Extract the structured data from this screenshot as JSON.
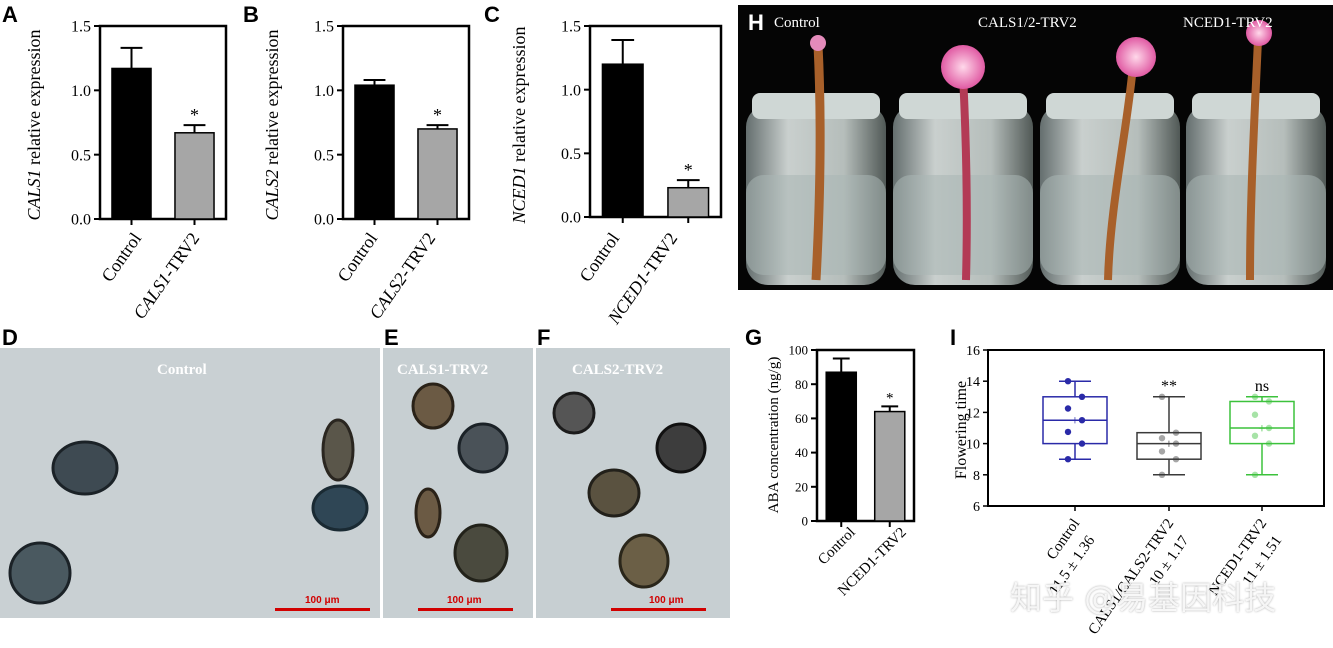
{
  "panels": {
    "A": {
      "letter": "A",
      "ylabel_italic": "CALS1",
      "ylabel_rest": " relative expression",
      "yticks": [
        "0.0",
        "0.5",
        "1.0",
        "1.5"
      ],
      "categories": [
        "Control",
        "CALS1-TRV2"
      ],
      "cat2_italic": "CALS1",
      "cat2_rest": "-TRV2",
      "star": "*"
    },
    "B": {
      "letter": "B",
      "ylabel_italic": "CALS2",
      "ylabel_rest": " relative expression",
      "yticks": [
        "0.0",
        "0.5",
        "1.0",
        "1.5"
      ],
      "categories": [
        "Control",
        "CALS2-TRV2"
      ],
      "cat2_italic": "CALS2",
      "cat2_rest": "-TRV2",
      "star": "*"
    },
    "C": {
      "letter": "C",
      "ylabel_italic": "NCED1",
      "ylabel_rest": " relative expression",
      "yticks": [
        "0.0",
        "0.5",
        "1.0",
        "1.5"
      ],
      "categories": [
        "Control",
        "NCED1-TRV2"
      ],
      "cat2_italic": "NCED1",
      "cat2_rest": "-TRV2",
      "star": "*"
    },
    "D": {
      "letter": "D",
      "label": "Control",
      "scale": "100 μm"
    },
    "E": {
      "letter": "E",
      "label": "CALS1-TRV2",
      "scale": "100 μm"
    },
    "F": {
      "letter": "F",
      "label": "CALS2-TRV2",
      "scale": "100 μm"
    },
    "G": {
      "letter": "G",
      "ylabel": "ABA concentration (ng/g)",
      "yticks": [
        "0",
        "20",
        "40",
        "60",
        "80",
        "100"
      ],
      "categories": [
        "Control",
        "NCED1-TRV2"
      ],
      "star": "*"
    },
    "H": {
      "letter": "H",
      "labels": [
        "Control",
        "CALS1/2-TRV2",
        "NCED1-TRV2"
      ]
    },
    "I": {
      "letter": "I",
      "ylabel": "Flowering time",
      "yticks": [
        "6",
        "8",
        "10",
        "12",
        "14",
        "16"
      ],
      "xlabels": [
        "Control",
        "CALS1/CALS2-TRV2",
        "NCED1-TRV2"
      ],
      "sublabels": [
        "11.5 ± 1.36",
        "10 ± 1.17",
        "11 ± 1.51"
      ],
      "sig": [
        "",
        "**",
        "ns"
      ]
    }
  },
  "watermark": "知乎 @易基因科技",
  "colors": {
    "control_bar": "#000000",
    "treat_bar": "#a6a6a6",
    "box_control": "#2a2aa8",
    "box_cals": "#3a3a3a",
    "box_nced": "#3cc23c",
    "scale": "#d10000"
  },
  "chart_data": [
    {
      "panel": "A",
      "type": "bar",
      "categories": [
        "Control",
        "CALS1-TRV2"
      ],
      "values": [
        1.17,
        0.67
      ],
      "errors": [
        0.16,
        0.06
      ],
      "ylabel": "CALS1 relative expression",
      "ylim": [
        0,
        1.5
      ]
    },
    {
      "panel": "B",
      "type": "bar",
      "categories": [
        "Control",
        "CALS2-TRV2"
      ],
      "values": [
        1.04,
        0.7
      ],
      "errors": [
        0.04,
        0.03
      ],
      "ylabel": "CALS2 relative expression",
      "ylim": [
        0,
        1.5
      ]
    },
    {
      "panel": "C",
      "type": "bar",
      "categories": [
        "Control",
        "NCED1-TRV2"
      ],
      "values": [
        1.2,
        0.23
      ],
      "errors": [
        0.19,
        0.06
      ],
      "ylabel": "NCED1 relative expression",
      "ylim": [
        0,
        1.5
      ]
    },
    {
      "panel": "G",
      "type": "bar",
      "categories": [
        "Control",
        "NCED1-TRV2"
      ],
      "values": [
        87,
        64
      ],
      "errors": [
        8,
        3
      ],
      "ylabel": "ABA concentration (ng/g)",
      "ylim": [
        0,
        100
      ]
    },
    {
      "panel": "I",
      "type": "box",
      "categories": [
        "Control",
        "CALS1/CALS2-TRV2",
        "NCED1-TRV2"
      ],
      "min": [
        9,
        8,
        8
      ],
      "q1": [
        10,
        9,
        10
      ],
      "median": [
        11.5,
        10,
        11
      ],
      "q3": [
        13,
        10.7,
        12.7
      ],
      "max": [
        14,
        13,
        13
      ],
      "mean": [
        11.5,
        10,
        11
      ],
      "ylabel": "Flowering time",
      "ylim": [
        6,
        16
      ]
    }
  ]
}
